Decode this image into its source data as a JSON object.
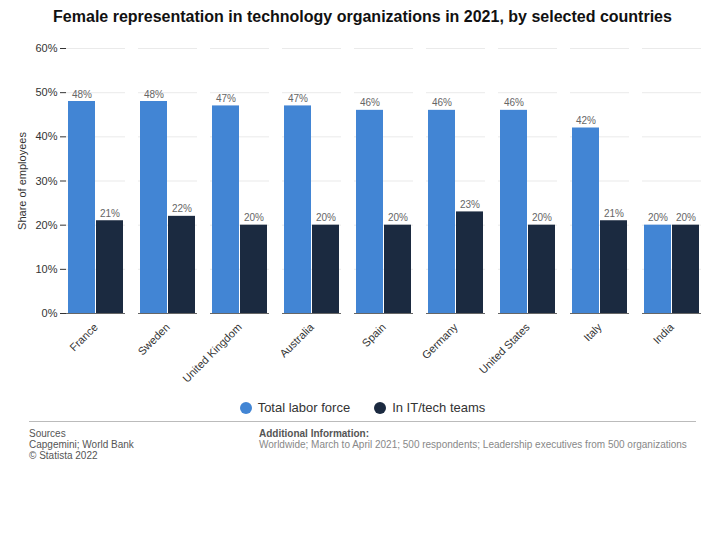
{
  "chart_data": {
    "type": "bar",
    "title": "Female representation in technology organizations in 2021, by selected countries",
    "ylabel": "Share of employees",
    "categories": [
      "France",
      "Sweden",
      "United Kingdom",
      "Australia",
      "Spain",
      "Germany",
      "United States",
      "Italy",
      "India"
    ],
    "series": [
      {
        "name": "Total labor force",
        "color": "#4285D4",
        "values": [
          48,
          48,
          47,
          47,
          46,
          46,
          46,
          42,
          20
        ],
        "value_labels": [
          "48%",
          "48%",
          "47%",
          "47%",
          "46%",
          "46%",
          "46%",
          "42%",
          "20%"
        ]
      },
      {
        "name": "In IT/tech teams",
        "color": "#1B2A40",
        "values": [
          21,
          22,
          20,
          20,
          20,
          23,
          20,
          21,
          20
        ],
        "value_labels": [
          "21%",
          "22%",
          "20%",
          "20%",
          "20%",
          "23%",
          "20%",
          "21%",
          "20%"
        ]
      }
    ],
    "ylim": [
      0,
      60
    ],
    "yticks": [
      {
        "value": 0,
        "label": "0%"
      },
      {
        "value": 10,
        "label": "10%"
      },
      {
        "value": 20,
        "label": "20%"
      },
      {
        "value": 30,
        "label": "30%"
      },
      {
        "value": 40,
        "label": "40%"
      },
      {
        "value": 50,
        "label": "50%"
      },
      {
        "value": 60,
        "label": "60%"
      }
    ],
    "grid": true,
    "data_labels": true,
    "legend": "bottom",
    "annotations": [
      "Sources\nCapgemini; World Bank\n© Statista 2022",
      "Additional Information:",
      "Worldwide; March to April 2021; 500 respondents; Leadership executives from 500 organizations"
    ]
  }
}
